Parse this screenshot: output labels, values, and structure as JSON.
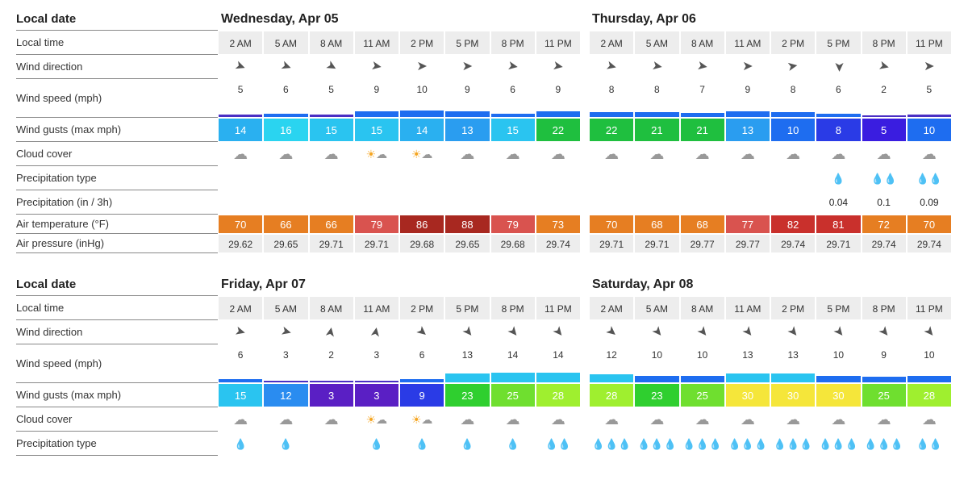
{
  "labels": {
    "local_date": "Local date",
    "local_time": "Local time",
    "wind_direction": "Wind direction",
    "wind_speed": "Wind speed (mph)",
    "wind_gusts": "Wind gusts (max mph)",
    "cloud_cover": "Cloud cover",
    "precip_type": "Precipitation type",
    "precip_amt": "Precipitation (in / 3h)",
    "air_temp": "Air temperature (°F)",
    "air_pressure": "Air pressure (inHg)"
  },
  "times": [
    "2 AM",
    "5 AM",
    "8 AM",
    "11 AM",
    "2 PM",
    "5 PM",
    "8 PM",
    "11 PM"
  ],
  "gust_color_scale": {
    "3": "#5a1fc4",
    "5": "#3a1de0",
    "8": "#2a3be6",
    "9": "#2a3be6",
    "10": "#1e6df0",
    "12": "#2a8cf0",
    "13": "#2a9df0",
    "14": "#2ab0f0",
    "15": "#2ac4f0",
    "16": "#2ad4f0",
    "21": "#1fbf3f",
    "22": "#1fbf3f",
    "23": "#2fcf2f",
    "25": "#6fdf2f",
    "28": "#9fef2f",
    "30": "#f5e63a"
  },
  "temp_color_scale": {
    "66": "#e67e22",
    "68": "#e67e22",
    "70": "#e67e22",
    "72": "#e67e22",
    "73": "#e67e22",
    "77": "#d9534f",
    "79": "#d9534f",
    "81": "#c9302c",
    "82": "#c9302c",
    "86": "#a82820",
    "88": "#a82820"
  },
  "speed_bar_colors": {
    "low": "#4a2fc4",
    "mid": "#1e6df0",
    "high": "#2ac4f0"
  },
  "days": [
    {
      "title": "Wednesday, Apr 05",
      "wind_dir_deg": [
        20,
        20,
        30,
        10,
        0,
        0,
        10,
        10
      ],
      "wind_speed": [
        5,
        6,
        5,
        9,
        10,
        9,
        6,
        9
      ],
      "wind_gusts": [
        14,
        16,
        15,
        15,
        14,
        13,
        15,
        22
      ],
      "cloud": [
        "cloud",
        "cloud",
        "cloud",
        "partly",
        "partly",
        "cloud",
        "cloud",
        "cloud"
      ],
      "precip_type": [
        "",
        "",
        "",
        "",
        "",
        "",
        "",
        ""
      ],
      "precip_amt": [
        "",
        "",
        "",
        "",
        "",
        "",
        "",
        ""
      ],
      "temp": [
        70,
        66,
        66,
        79,
        86,
        88,
        79,
        73
      ],
      "pressure": [
        "29.62",
        "29.65",
        "29.71",
        "29.71",
        "29.68",
        "29.65",
        "29.68",
        "29.74"
      ]
    },
    {
      "title": "Thursday, Apr 06",
      "wind_dir_deg": [
        15,
        10,
        10,
        0,
        350,
        90,
        15,
        0
      ],
      "wind_speed": [
        8,
        8,
        7,
        9,
        8,
        6,
        2,
        5
      ],
      "wind_gusts": [
        22,
        21,
        21,
        13,
        10,
        8,
        5,
        10
      ],
      "cloud": [
        "cloud",
        "cloud",
        "cloud",
        "cloud",
        "cloud",
        "cloud",
        "cloud",
        "cloud"
      ],
      "precip_type": [
        "",
        "",
        "",
        "",
        "",
        "drop",
        "drops",
        "drops"
      ],
      "precip_amt": [
        "",
        "",
        "",
        "",
        "",
        "0.04",
        "0.1",
        "0.09"
      ],
      "temp": [
        70,
        68,
        68,
        77,
        82,
        81,
        72,
        70
      ],
      "pressure": [
        "29.71",
        "29.71",
        "29.77",
        "29.77",
        "29.74",
        "29.71",
        "29.74",
        "29.74"
      ]
    },
    {
      "title": "Friday, Apr 07",
      "wind_dir_deg": [
        15,
        15,
        280,
        280,
        40,
        50,
        50,
        50
      ],
      "wind_speed": [
        6,
        3,
        2,
        3,
        6,
        13,
        14,
        14
      ],
      "wind_gusts": [
        15,
        12,
        3,
        3,
        9,
        23,
        25,
        28
      ],
      "cloud": [
        "cloud",
        "cloud",
        "cloud",
        "partly",
        "partly",
        "cloud",
        "cloud",
        "cloud"
      ],
      "precip_type": [
        "drop",
        "drop",
        "",
        "drop",
        "drop",
        "drop",
        "drop",
        "drops"
      ],
      "precip_amt": [
        "",
        "",
        "",
        "",
        "",
        "",
        "",
        ""
      ],
      "temp": [],
      "pressure": []
    },
    {
      "title": "Saturday, Apr 08",
      "wind_dir_deg": [
        40,
        50,
        50,
        50,
        50,
        50,
        50,
        50
      ],
      "wind_speed": [
        12,
        10,
        10,
        13,
        13,
        10,
        9,
        10
      ],
      "wind_gusts": [
        28,
        23,
        25,
        30,
        30,
        30,
        25,
        28
      ],
      "cloud": [
        "cloud",
        "cloud",
        "cloud",
        "cloud",
        "cloud",
        "cloud",
        "cloud",
        "cloud"
      ],
      "precip_type": [
        "drops3",
        "drops3",
        "drops3",
        "drops3",
        "drops3",
        "drops3",
        "drops3",
        "drops"
      ],
      "precip_amt": [
        "",
        "",
        "",
        "",
        "",
        "",
        "",
        ""
      ],
      "temp": [],
      "pressure": []
    }
  ]
}
